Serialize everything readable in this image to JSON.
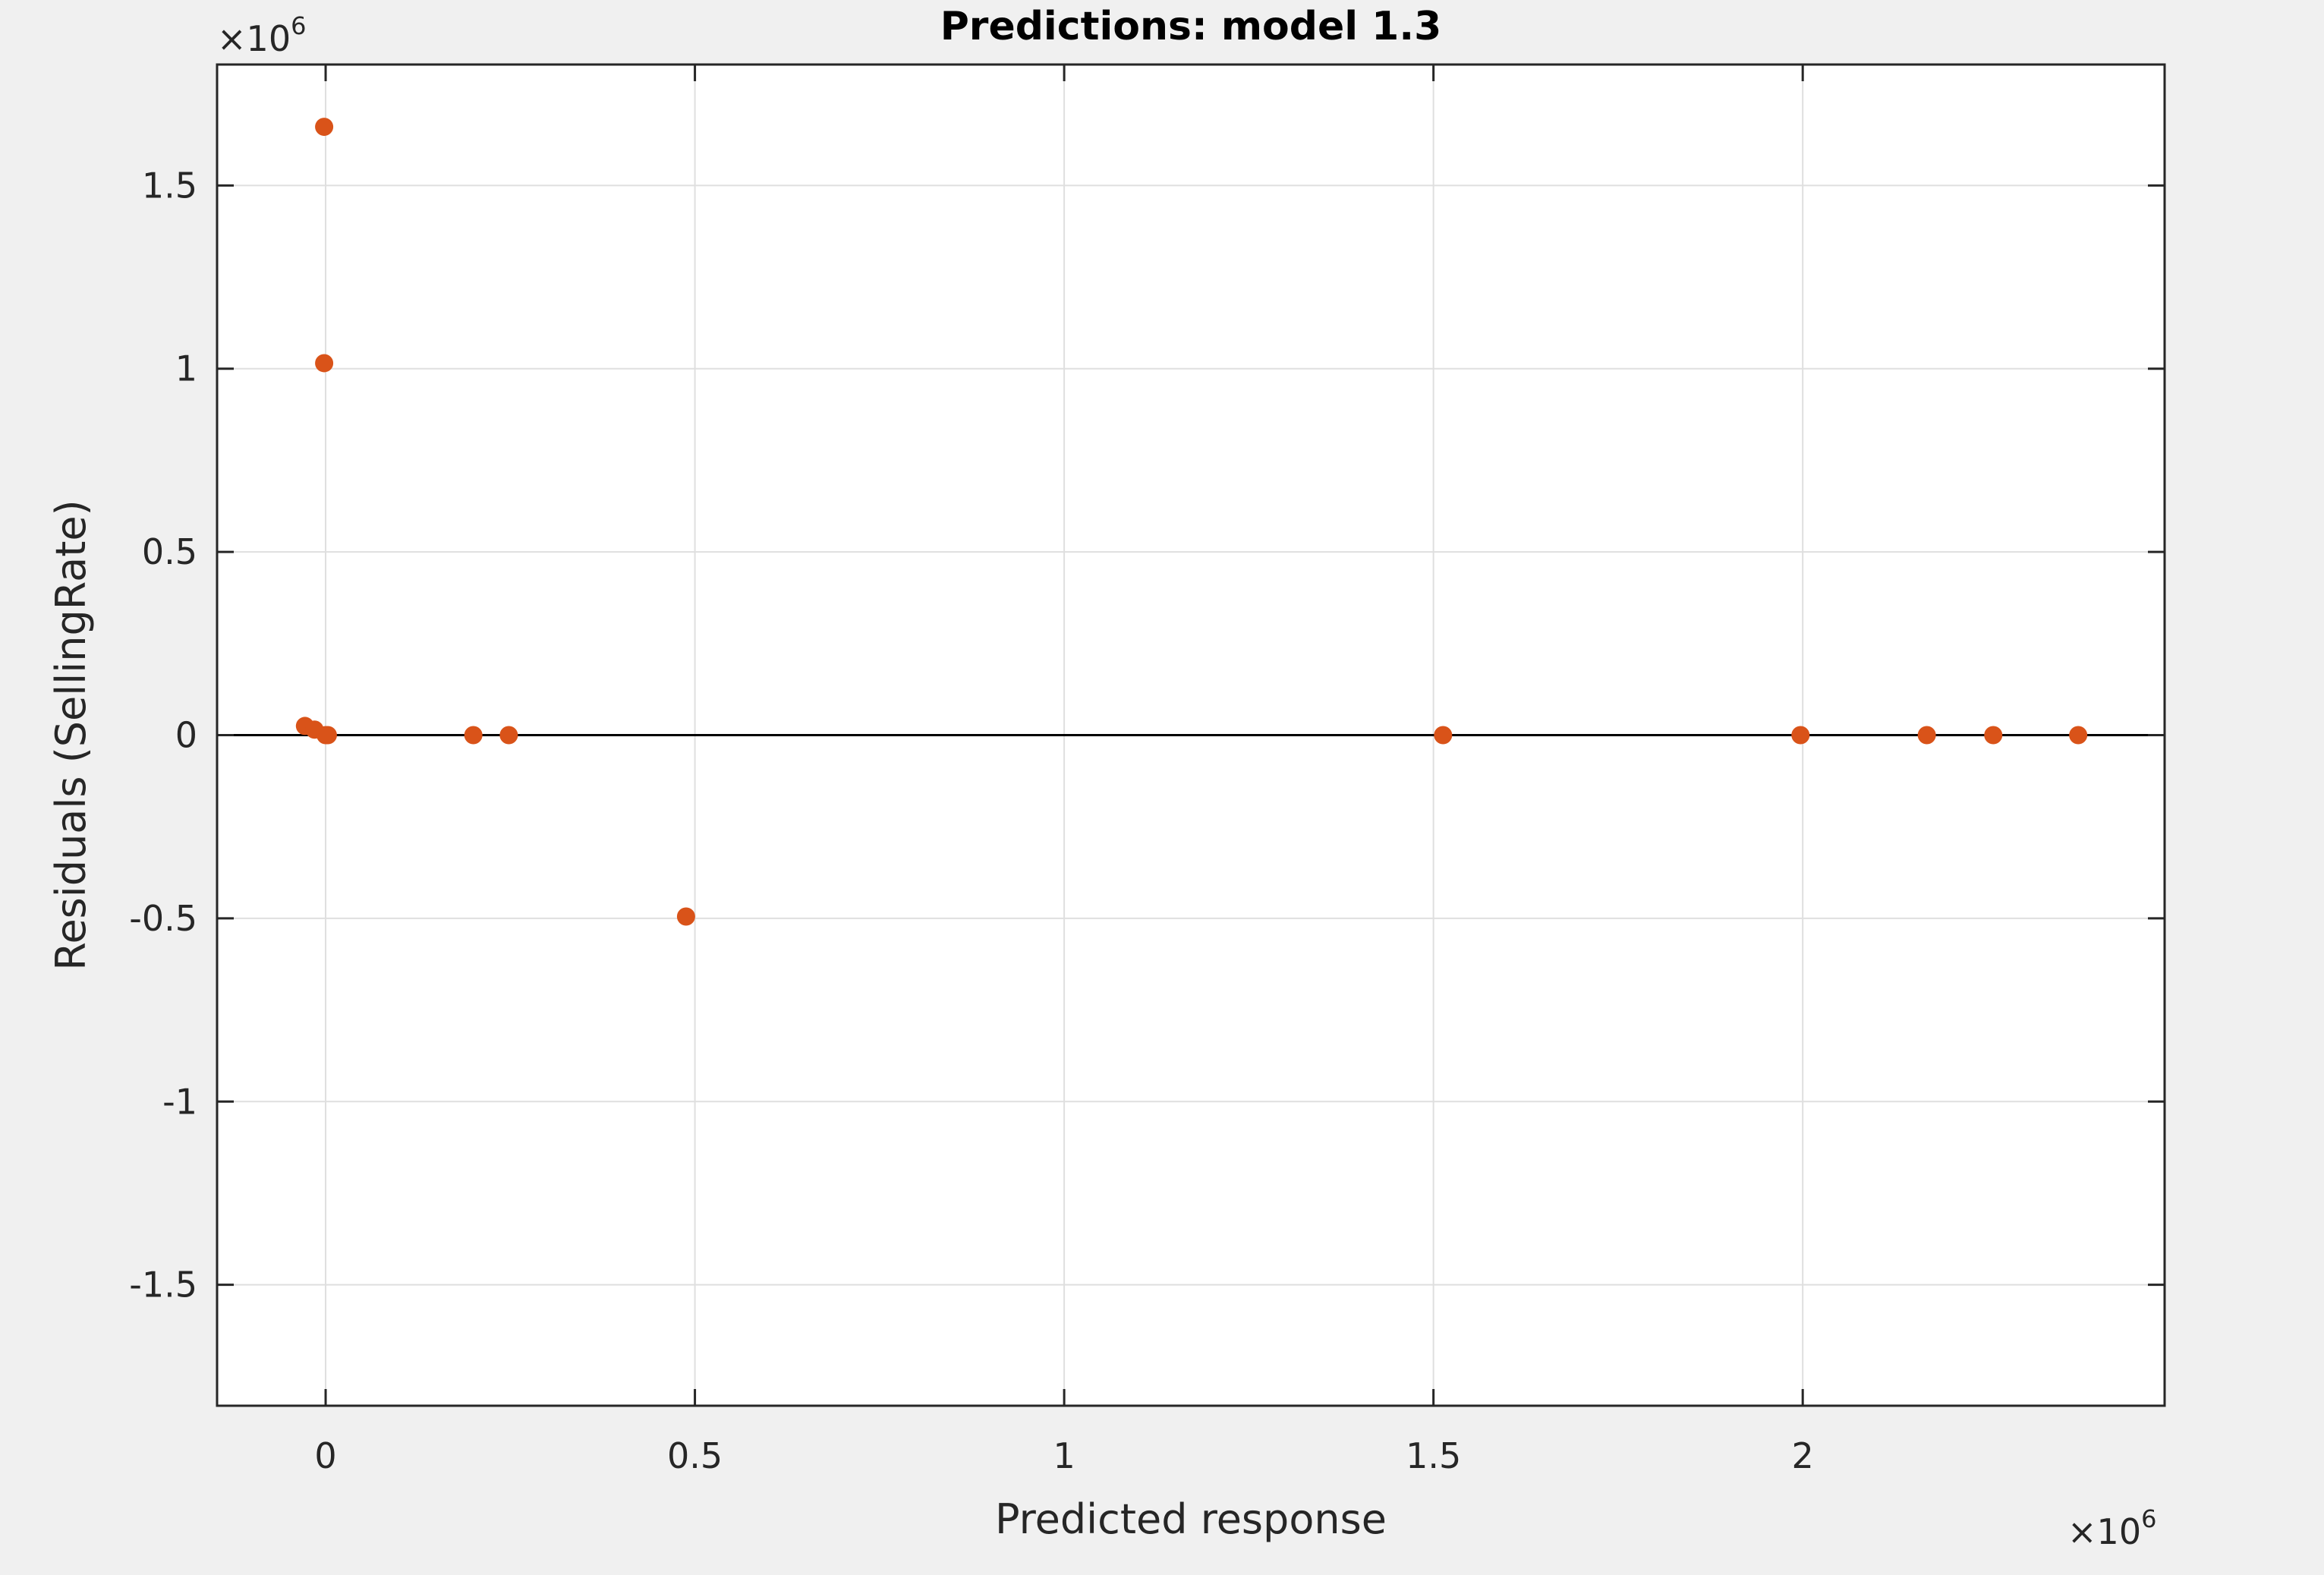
{
  "chart_data": {
    "type": "scatter",
    "title": "Predictions: model 1.3",
    "xlabel": "Predicted response",
    "ylabel": "Residuals (SellingRate)",
    "x_exponent": {
      "base": "10",
      "power": "6",
      "prefix": "×"
    },
    "y_exponent": {
      "base": "10",
      "power": "6",
      "prefix": "×"
    },
    "xlim": [
      -0.147,
      2.49
    ],
    "ylim": [
      -1.83,
      1.83
    ],
    "xticks": [
      0,
      0.5,
      1,
      1.5,
      2
    ],
    "xtick_labels": [
      "0",
      "0.5",
      "1",
      "1.5",
      "2"
    ],
    "yticks": [
      -1.5,
      -1,
      -0.5,
      0,
      0.5,
      1,
      1.5
    ],
    "ytick_labels": [
      "-1.5",
      "-1",
      "-0.5",
      "0",
      "0.5",
      "1",
      "1.5"
    ],
    "grid": true,
    "zero_line": 0,
    "marker_color": "#d95319",
    "series": [
      {
        "points": [
          {
            "x": -0.028,
            "y": 0.025
          },
          {
            "x": -0.015,
            "y": 0.015
          },
          {
            "x": -0.002,
            "y": 1.66
          },
          {
            "x": -0.002,
            "y": 1.015
          },
          {
            "x": 0.0,
            "y": 0.0
          },
          {
            "x": 0.003,
            "y": 0.0
          },
          {
            "x": 0.2,
            "y": 0.0
          },
          {
            "x": 0.248,
            "y": 0.0
          },
          {
            "x": 0.488,
            "y": -0.495
          },
          {
            "x": 1.513,
            "y": 0.0
          },
          {
            "x": 1.997,
            "y": 0.0
          },
          {
            "x": 2.168,
            "y": 0.0
          },
          {
            "x": 2.258,
            "y": 0.0
          },
          {
            "x": 2.373,
            "y": 0.0
          }
        ]
      }
    ]
  }
}
